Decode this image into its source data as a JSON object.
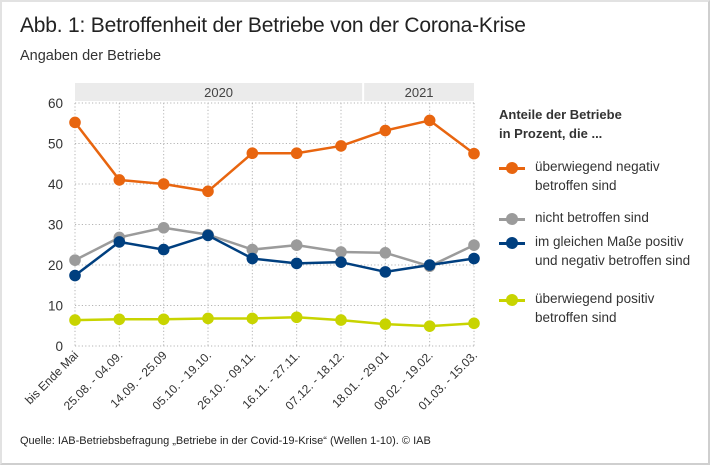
{
  "header": {
    "title": "Abb. 1: Betroffenheit der Betriebe von der Corona-Krise",
    "subtitle": "Angaben der Betriebe"
  },
  "footer": {
    "source": "Quelle: IAB-Betriebsbefragung „Betriebe in der Covid-19-Krise“ (Wellen 1-10). © IAB"
  },
  "legend": {
    "title_line1": "Anteile der Betriebe",
    "title_line2": "in Prozent, die ...",
    "items": [
      {
        "label": "überwiegend negativ\nbetroffen sind",
        "color": "#E8650F"
      },
      {
        "label": "nicht betroffen sind",
        "color": "#9B9B9B"
      },
      {
        "label": "im gleichen Maße positiv\nund negativ betroffen sind",
        "color": "#003F7F"
      },
      {
        "label": "überwiegend positiv\nbetroffen sind",
        "color": "#C8D400"
      }
    ]
  },
  "chart_data": {
    "type": "line",
    "title": "Abb. 1: Betroffenheit der Betriebe von der Corona-Krise",
    "subtitle": "Angaben der Betriebe",
    "xlabel": "",
    "ylabel": "",
    "ylim": [
      0,
      60
    ],
    "yticks": [
      0,
      10,
      20,
      30,
      40,
      50,
      60
    ],
    "grid": true,
    "legend_position": "right",
    "categories": [
      "bis Ende Mai",
      "25.08. - 04.09.",
      "14.09. - 25.09",
      "05.10. - 19.10.",
      "26.10. - 09.11.",
      "16.11. - 27.11.",
      "07.12. - 18.12.",
      "18.01. - 29.01",
      "08.02. - 19.02.",
      "01.03. - 15.03."
    ],
    "year_groups": [
      {
        "label": "2020",
        "from_index": 0,
        "to_index": 6
      },
      {
        "label": "2021",
        "from_index": 7,
        "to_index": 9
      }
    ],
    "series": [
      {
        "name": "überwiegend negativ betroffen sind",
        "color": "#E8650F",
        "values": [
          55.2,
          41.0,
          40.0,
          38.2,
          47.6,
          47.6,
          49.4,
          53.2,
          55.7,
          47.5
        ]
      },
      {
        "name": "nicht betroffen sind",
        "color": "#9B9B9B",
        "values": [
          21.2,
          26.8,
          29.2,
          27.5,
          23.8,
          24.9,
          23.2,
          23.0,
          19.7,
          24.9
        ]
      },
      {
        "name": "im gleichen Maße positiv und negativ betroffen sind",
        "color": "#003F7F",
        "values": [
          17.4,
          25.7,
          23.8,
          27.3,
          21.6,
          20.4,
          20.7,
          18.3,
          20.0,
          21.6
        ]
      },
      {
        "name": "überwiegend positiv betroffen sind",
        "color": "#C8D400",
        "values": [
          6.4,
          6.6,
          6.6,
          6.8,
          6.8,
          7.1,
          6.4,
          5.4,
          4.9,
          5.6
        ]
      }
    ]
  }
}
